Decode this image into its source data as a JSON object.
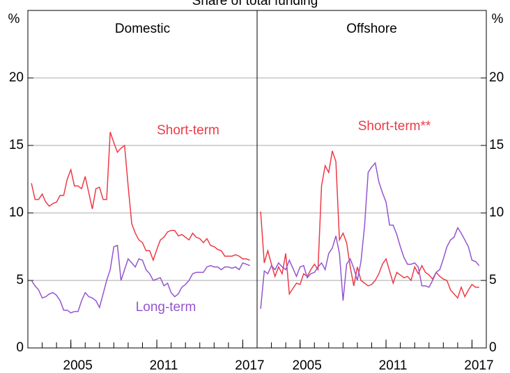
{
  "chart_data": {
    "type": "line",
    "title": "Share of total funding",
    "y_unit": "%",
    "ylim": [
      0,
      25
    ],
    "yticks": [
      0,
      5,
      10,
      15,
      20
    ],
    "grid": true,
    "panels": [
      {
        "title": "Domestic",
        "xlim": [
          2002,
          2018
        ],
        "xticks": [
          2005,
          2011,
          2017
        ],
        "x": [
          2002.25,
          2002.5,
          2002.75,
          2003,
          2003.25,
          2003.5,
          2003.75,
          2004,
          2004.25,
          2004.5,
          2004.75,
          2005,
          2005.25,
          2005.5,
          2005.75,
          2006,
          2006.25,
          2006.5,
          2006.75,
          2007,
          2007.25,
          2007.5,
          2007.75,
          2008,
          2008.25,
          2008.5,
          2008.75,
          2009,
          2009.25,
          2009.5,
          2009.75,
          2010,
          2010.25,
          2010.5,
          2010.75,
          2011,
          2011.25,
          2011.5,
          2011.75,
          2012,
          2012.25,
          2012.5,
          2012.75,
          2013,
          2013.25,
          2013.5,
          2013.75,
          2014,
          2014.25,
          2014.5,
          2014.75,
          2015,
          2015.25,
          2015.5,
          2015.75,
          2016,
          2016.25,
          2016.5,
          2016.75,
          2017,
          2017.25,
          2017.5
        ],
        "series": [
          {
            "name": "Short-term",
            "color": "#ee3a46",
            "values": [
              12.2,
              11,
              11,
              11.4,
              10.8,
              10.5,
              10.7,
              10.8,
              11.3,
              11.3,
              12.5,
              13.2,
              12,
              12,
              11.8,
              12.7,
              11.5,
              10.3,
              11.8,
              11.9,
              11,
              11,
              16,
              15.2,
              14.5,
              14.8,
              15,
              12,
              9.2,
              8.5,
              8,
              7.8,
              7.2,
              7.2,
              6.5,
              7.3,
              8,
              8.2,
              8.6,
              8.7,
              8.7,
              8.3,
              8.4,
              8.2,
              8,
              8.5,
              8.2,
              8.1,
              7.8,
              8.1,
              7.6,
              7.5,
              7.3,
              7.2,
              6.8,
              6.8,
              6.8,
              6.9,
              6.8,
              6.6,
              6.6,
              6.5
            ]
          },
          {
            "name": "Long-term",
            "color": "#9355d0",
            "values": [
              5.0,
              4.6,
              4.3,
              3.7,
              3.8,
              4.0,
              4.1,
              3.9,
              3.5,
              2.8,
              2.8,
              2.6,
              2.7,
              2.7,
              3.5,
              4.1,
              3.8,
              3.7,
              3.5,
              3.0,
              4.0,
              5.0,
              5.8,
              7.5,
              7.6,
              5.0,
              5.8,
              6.6,
              6.3,
              6.0,
              6.6,
              6.5,
              5.8,
              5.5,
              5.0,
              5.1,
              5.2,
              4.6,
              4.8,
              4.1,
              3.8,
              4.0,
              4.5,
              4.7,
              5.0,
              5.5,
              5.6,
              5.6,
              5.6,
              6.0,
              6.1,
              6.0,
              6.0,
              5.8,
              6.0,
              6.0,
              5.9,
              6.0,
              5.8,
              6.3,
              6.2,
              6.1
            ]
          }
        ]
      },
      {
        "title": "Offshore",
        "xlim": [
          2002,
          2018
        ],
        "xticks": [
          2005,
          2011,
          2017
        ],
        "x": [
          2002.25,
          2002.5,
          2002.75,
          2003,
          2003.25,
          2003.5,
          2003.75,
          2004,
          2004.25,
          2004.5,
          2004.75,
          2005,
          2005.25,
          2005.5,
          2005.75,
          2006,
          2006.25,
          2006.5,
          2006.75,
          2007,
          2007.25,
          2007.5,
          2007.75,
          2008,
          2008.25,
          2008.5,
          2008.75,
          2009,
          2009.25,
          2009.5,
          2009.75,
          2010,
          2010.25,
          2010.5,
          2010.75,
          2011,
          2011.25,
          2011.5,
          2011.75,
          2012,
          2012.25,
          2012.5,
          2012.75,
          2013,
          2013.25,
          2013.5,
          2013.75,
          2014,
          2014.25,
          2014.5,
          2014.75,
          2015,
          2015.25,
          2015.5,
          2015.75,
          2016,
          2016.25,
          2016.5,
          2016.75,
          2017,
          2017.25,
          2017.5
        ],
        "series": [
          {
            "name": "Short-term**",
            "color": "#ee3a46",
            "values": [
              10.1,
              6.3,
              7.2,
              6.2,
              5.3,
              6.0,
              5.5,
              7.0,
              4.0,
              4.4,
              4.8,
              4.7,
              5.5,
              5.3,
              5.8,
              6.2,
              5.8,
              12,
              13.5,
              13.0,
              14.6,
              13.8,
              8,
              8.5,
              7.8,
              6,
              4.6,
              6,
              5,
              4.8,
              4.6,
              4.7,
              5,
              5.5,
              6.2,
              6.6,
              5.7,
              4.8,
              5.6,
              5.4,
              5.2,
              5.3,
              5.0,
              6.0,
              5.5,
              6.1,
              5.6,
              5.4,
              5.1,
              5.6,
              5.3,
              5.1,
              5,
              4.3,
              4,
              3.7,
              4.5,
              3.8,
              4.3,
              4.7,
              4.5,
              4.5
            ]
          },
          {
            "color": "#9355d0",
            "values": [
              2.9,
              5.7,
              5.5,
              6.1,
              5.8,
              6.3,
              6.0,
              5.8,
              6.5,
              5.9,
              5.3,
              6.0,
              6.1,
              5.2,
              5.5,
              5.6,
              6.0,
              6.3,
              5.8,
              7.0,
              7.4,
              8.3,
              7.0,
              3.5,
              6.2,
              6.6,
              5.9,
              5.0,
              6.4,
              9,
              13.0,
              13.4,
              13.7,
              12.3,
              11.5,
              10.8,
              9.1,
              9.1,
              8.4,
              7.5,
              6.7,
              6.2,
              6.2,
              6.3,
              6.0,
              4.6,
              4.6,
              4.5,
              5.0,
              5.6,
              5.8,
              6.6,
              7.5,
              8.0,
              8.2,
              8.9,
              8.5,
              8.0,
              7.5,
              6.5,
              6.4,
              6.1
            ]
          }
        ]
      }
    ]
  }
}
